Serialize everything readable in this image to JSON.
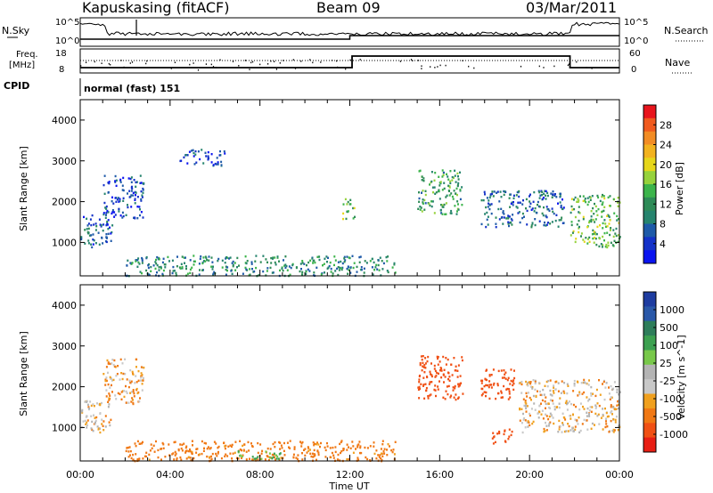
{
  "header": {
    "station": "Kapuskasing (fitACF)",
    "beam": "Beam 09",
    "date": "03/Mar/2011"
  },
  "panels": {
    "nsky": {
      "left_label": "N.Sky",
      "right_label": "N.Search",
      "left_ticks": [
        "10^5",
        "10^0"
      ],
      "right_ticks": [
        "10^5",
        "10^0"
      ]
    },
    "freq": {
      "left_label_1": "Freq.",
      "left_label_2": "[MHz]",
      "right_label": "Nave",
      "left_ticks": [
        "18",
        "8"
      ],
      "right_ticks": [
        "60",
        "0"
      ]
    },
    "cpid": {
      "label": "CPID",
      "text": "normal (fast) 151"
    }
  },
  "time_axis": {
    "ticks": [
      "00:00",
      "04:00",
      "08:00",
      "12:00",
      "16:00",
      "20:00",
      "00:00"
    ],
    "xlabel": "Time UT"
  },
  "colorbars": {
    "power": {
      "label": "Power [dB]",
      "ticks": [
        "28",
        "24",
        "20",
        "16",
        "12",
        "8",
        "4"
      ],
      "colors": [
        "#e8141c",
        "#f05a1e",
        "#f28c24",
        "#f2b21e",
        "#e6d61a",
        "#96d23c",
        "#3cb44b",
        "#2e8b57",
        "#26846e",
        "#1e5aa8",
        "#1432c8",
        "#0a14f0"
      ]
    },
    "velocity": {
      "label": "Velocity [m s^-1]",
      "ticks": [
        "1000",
        "500",
        "100",
        "25",
        "-25",
        "-100",
        "-500",
        "-1000"
      ],
      "colors": [
        "#1e3ca0",
        "#2a58a8",
        "#2e7d5a",
        "#3ca050",
        "#78c84a",
        "#b4b4b4",
        "#c8c8c8",
        "#f0a01e",
        "#f07814",
        "#f05014",
        "#e81e14"
      ]
    }
  },
  "chart_data": [
    {
      "type": "heatmap",
      "title": "Power",
      "ylabel": "Slant Range [km]",
      "xlabel": "Time UT",
      "xlim": [
        0,
        24
      ],
      "ylim": [
        180,
        4500
      ],
      "yticks": [
        1000,
        2000,
        3000,
        4000
      ],
      "colorbar": {
        "label": "Power [dB]",
        "range": [
          0,
          30
        ]
      },
      "regions": [
        {
          "name": "early slant echoes",
          "t": [
            0.0,
            1.4
          ],
          "r": [
            900,
            1700
          ],
          "value": 6
        },
        {
          "name": "rising arc",
          "t": [
            1.0,
            2.8
          ],
          "r": [
            1600,
            2700
          ],
          "value": 5
        },
        {
          "name": "04-06 faint band",
          "t": [
            4.4,
            6.4
          ],
          "r": [
            2900,
            3300
          ],
          "value": 4
        },
        {
          "name": "near range clutter",
          "t": [
            2.0,
            14.0
          ],
          "r": [
            200,
            700
          ],
          "value": 10
        },
        {
          "name": "12 UT streak",
          "t": [
            11.6,
            12.2
          ],
          "r": [
            1600,
            2100
          ],
          "value": 14
        },
        {
          "name": "16 UT echoes",
          "t": [
            15.0,
            17.0
          ],
          "r": [
            1700,
            2800
          ],
          "value": 12
        },
        {
          "name": "18-21 UT band",
          "t": [
            17.8,
            21.5
          ],
          "r": [
            1400,
            2300
          ],
          "value": 7
        },
        {
          "name": "22-24 UT echoes",
          "t": [
            21.8,
            24.0
          ],
          "r": [
            900,
            2200
          ],
          "value": 14
        }
      ]
    },
    {
      "type": "heatmap",
      "title": "Velocity",
      "ylabel": "Slant Range [km]",
      "xlabel": "Time UT",
      "xlim": [
        0,
        24
      ],
      "ylim": [
        180,
        4500
      ],
      "yticks": [
        1000,
        2000,
        3000,
        4000
      ],
      "colorbar": {
        "label": "Velocity [m s^-1]",
        "range": [
          -1000,
          1000
        ]
      },
      "regions": [
        {
          "name": "early slant echoes",
          "t": [
            0.0,
            1.4
          ],
          "r": [
            900,
            1700
          ],
          "value": 0
        },
        {
          "name": "rising arc",
          "t": [
            1.0,
            2.8
          ],
          "r": [
            1600,
            2700
          ],
          "value": -20
        },
        {
          "name": "near range clutter",
          "t": [
            2.0,
            14.0
          ],
          "r": [
            200,
            700
          ],
          "value": -60
        },
        {
          "name": "08 UT green patch",
          "t": [
            7.0,
            9.0
          ],
          "r": [
            250,
            450
          ],
          "value": 100
        },
        {
          "name": "16 UT echoes",
          "t": [
            15.0,
            17.0
          ],
          "r": [
            1700,
            2800
          ],
          "value": -300
        },
        {
          "name": "18-20 UT orange",
          "t": [
            17.8,
            19.3
          ],
          "r": [
            1700,
            2500
          ],
          "value": -300
        },
        {
          "name": "18.5 UT low orange",
          "t": [
            18.3,
            19.2
          ],
          "r": [
            600,
            1000
          ],
          "value": -300
        },
        {
          "name": "20-24 UT grey band",
          "t": [
            19.5,
            24.0
          ],
          "r": [
            900,
            2200
          ],
          "value": 0
        }
      ]
    }
  ]
}
